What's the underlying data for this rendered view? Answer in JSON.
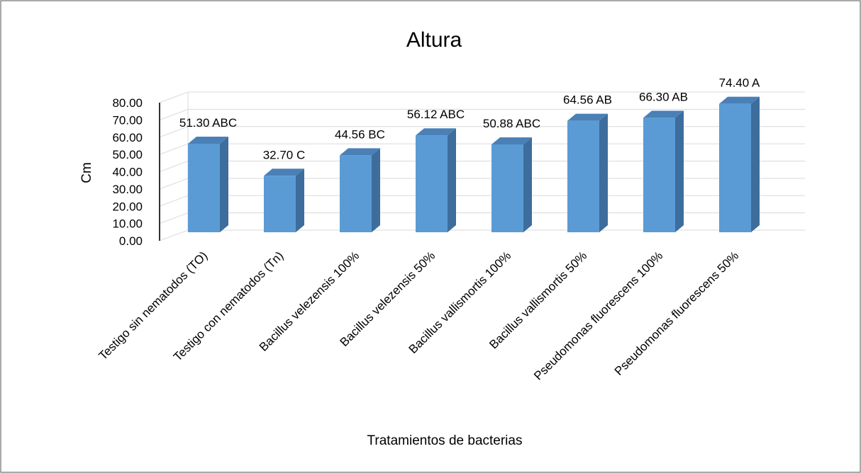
{
  "chart_data": {
    "type": "bar",
    "title": "Altura",
    "x_label": "Tratamientos de bacterias",
    "y_label": "Cm",
    "categories": [
      "Testigo sin nematodos (TO)",
      "Testigo con nematodos (Tn)",
      "Bacillus velezensis 100%",
      "Bacillus velezensis 50%",
      "Bacillus vallismortis 100%",
      "Bacillus vallismortis 50%",
      "Pseudomonas fluorescens 100%",
      "Pseudomonas fluorescens 50%"
    ],
    "values": [
      51.3,
      32.7,
      44.56,
      56.12,
      50.88,
      64.56,
      66.3,
      74.4
    ],
    "value_labels": [
      "51.30 ABC",
      "32.70 C",
      "44.56 BC",
      "56.12 ABC",
      "50.88 ABC",
      "64.56 AB",
      "66.30 AB",
      "74.40 A"
    ],
    "color": "#5b9bd5",
    "ylim": [
      0,
      80
    ],
    "yticks": [
      {
        "value": 0,
        "label": "0.00"
      },
      {
        "value": 10,
        "label": "10.00"
      },
      {
        "value": 20,
        "label": "20.00"
      },
      {
        "value": 30,
        "label": "30.00"
      },
      {
        "value": 40,
        "label": "40.00"
      },
      {
        "value": 50,
        "label": "50.00"
      },
      {
        "value": 60,
        "label": "60.00"
      },
      {
        "value": 70,
        "label": "70.00"
      },
      {
        "value": 80,
        "label": "80.00"
      }
    ],
    "grid": true
  }
}
